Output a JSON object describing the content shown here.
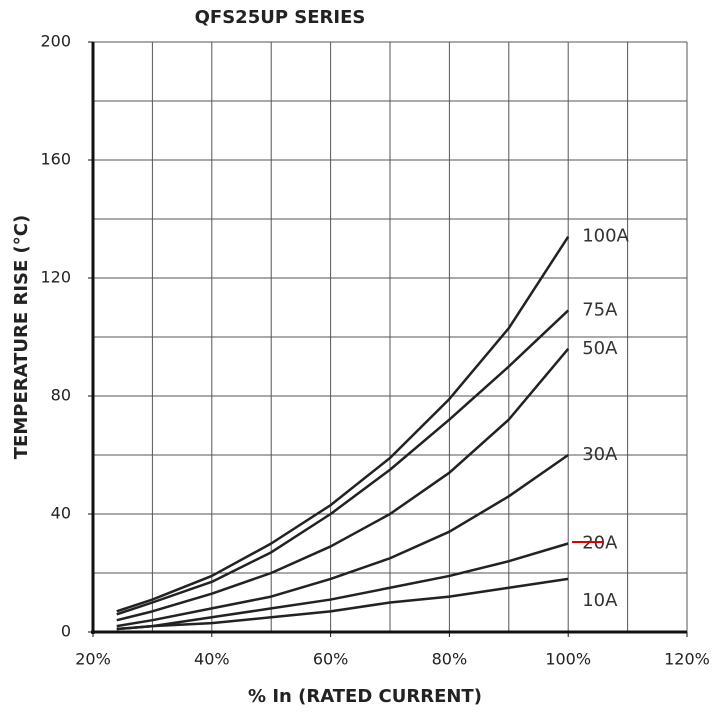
{
  "chart_data": {
    "type": "line",
    "title": "QFS25UP SERIES",
    "xlabel": "% In (RATED CURRENT)",
    "ylabel": "TEMPERATURE RISE (°C)",
    "x": [
      24,
      30,
      40,
      50,
      60,
      70,
      80,
      90,
      100
    ],
    "series": [
      {
        "name": "100A",
        "color": "#222222",
        "values": [
          7,
          11,
          19,
          30,
          43,
          59,
          79,
          103,
          134
        ]
      },
      {
        "name": "75A",
        "color": "#222222",
        "values": [
          6,
          10,
          17,
          27,
          40,
          55,
          72,
          90,
          109
        ]
      },
      {
        "name": "50A",
        "color": "#222222",
        "values": [
          4,
          7,
          13,
          20,
          29,
          40,
          54,
          72,
          96
        ]
      },
      {
        "name": "30A",
        "color": "#222222",
        "values": [
          2,
          4,
          8,
          12,
          18,
          25,
          34,
          46,
          60
        ]
      },
      {
        "name": "20A",
        "color": "#222222",
        "values": [
          1,
          2,
          5,
          8,
          11,
          15,
          19,
          24,
          30
        ]
      },
      {
        "name": "10A",
        "color": "#222222",
        "values": [
          1,
          2,
          3,
          5,
          7,
          10,
          12,
          15,
          18
        ]
      }
    ],
    "xlim": [
      20,
      120
    ],
    "xticks": [
      {
        "value": 20,
        "label": "20%"
      },
      {
        "value": 40,
        "label": "40%"
      },
      {
        "value": 60,
        "label": "60%"
      },
      {
        "value": 80,
        "label": "80%"
      },
      {
        "value": 100,
        "label": "100%"
      },
      {
        "value": 120,
        "label": "120%"
      }
    ],
    "xgrid": [
      30,
      40,
      50,
      60,
      70,
      80,
      90,
      100,
      110,
      120
    ],
    "ylim": [
      0,
      200
    ],
    "yticks": [
      0,
      40,
      80,
      120,
      160,
      200
    ],
    "ygrid": [
      20,
      40,
      60,
      80,
      100,
      120,
      140,
      160,
      180,
      200
    ],
    "grid": true
  }
}
